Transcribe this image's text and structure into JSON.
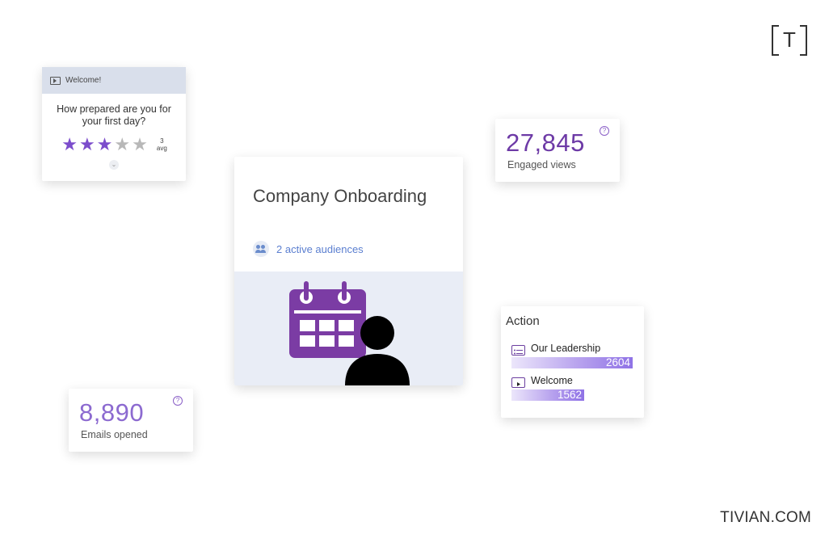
{
  "brand": {
    "mark_letter": "T",
    "site": "TIVIAN.COM"
  },
  "welcome_card": {
    "header": "Welcome!",
    "header_icon": "play-icon",
    "question": "How prepared are you for your first day?",
    "rating": {
      "value": 3,
      "max": 5,
      "avg_number": "3",
      "avg_label": "avg"
    },
    "accent_color": "#7c4dcc",
    "expand_icon": "chevron-down-icon"
  },
  "main_card": {
    "title": "Company Onboarding",
    "audiences_label": "2 active audiences",
    "audiences_icon": "people-icon",
    "hero_icons": [
      "calendar-icon",
      "person-icon"
    ],
    "hero_colors": {
      "calendar": "#7b3ca4",
      "person": "#000000",
      "background": "#e9edf6"
    }
  },
  "views_stat": {
    "value": "27,845",
    "label": "Engaged views",
    "help_icon": "question-icon",
    "color": "#6d3aa6"
  },
  "emails_stat": {
    "value": "8,890",
    "label": "Emails opened",
    "help_icon": "question-icon",
    "color": "#8c6ad0"
  },
  "action_card": {
    "title": "Action",
    "items": [
      {
        "name": "Our Leadership",
        "value": "2604",
        "icon": "list-icon",
        "share": 1.0
      },
      {
        "name": "Welcome",
        "value": "1562",
        "icon": "play-icon",
        "share": 0.6
      }
    ]
  }
}
